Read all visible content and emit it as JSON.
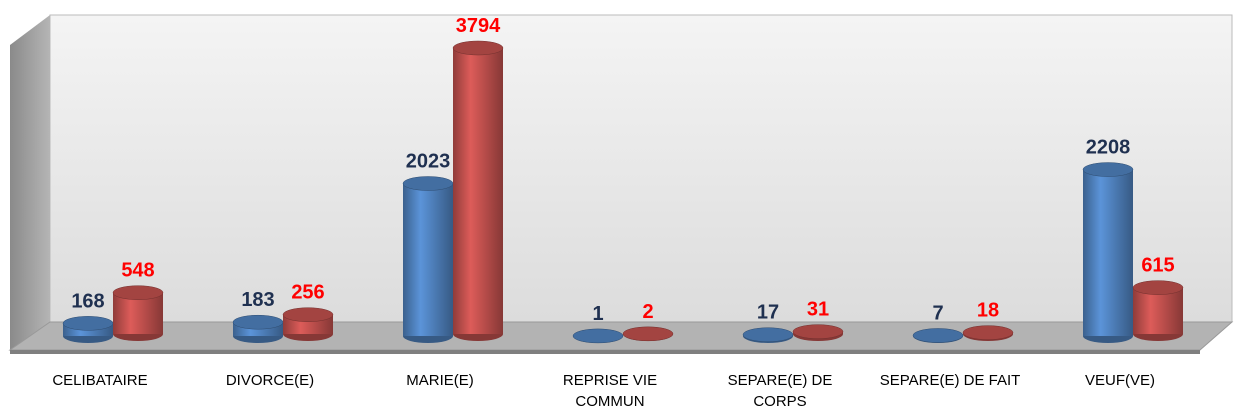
{
  "chart_data": {
    "type": "bar3d",
    "categories": [
      "CELIBATAIRE",
      "DIVORCE(E)",
      "MARIE(E)",
      "REPRISE VIE COMMUN",
      "SEPARE(E) DE CORPS",
      "SEPARE(E) DE FAIT",
      "VEUF(VE)"
    ],
    "series": [
      {
        "color": "#4f81bd",
        "label_color": "#1f3050",
        "values": [
          168,
          183,
          2023,
          1,
          17,
          7,
          2208
        ]
      },
      {
        "color": "#c0504d",
        "label_color": "#ff0000",
        "values": [
          548,
          256,
          3794,
          2,
          31,
          18,
          615
        ]
      }
    ]
  }
}
